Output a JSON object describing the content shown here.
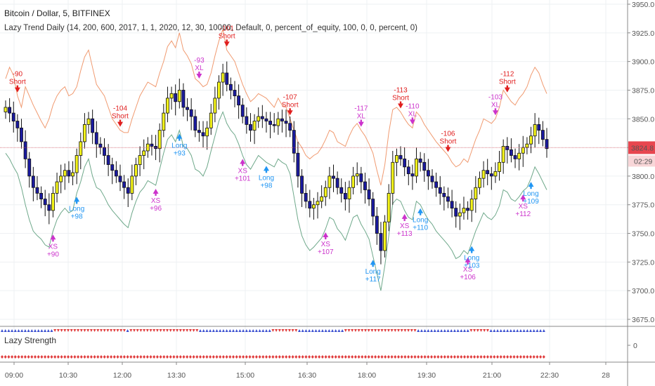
{
  "header": {
    "title": "Bitcoin / Dollar, 5, BITFINEX",
    "indicator": "Lazy Trend Daily (14, 200, 600, 2017, 1, 1, 2020, 12, 30, 10000, Default, 0, percent_of_equity, 100, 0, 0, percent, 0)"
  },
  "subpanel": {
    "title": "Lazy Strength",
    "zero_label": "0"
  },
  "price_scale": {
    "labels": [
      "3950.0",
      "3925.0",
      "3900.0",
      "3875.0",
      "3850.0",
      "3825.0",
      "3800.0",
      "3775.0",
      "3750.0",
      "3725.0",
      "3700.0",
      "3675.0"
    ],
    "current_price": "3824.8",
    "countdown": "02:29"
  },
  "colors": {
    "bull_candle": "#f5f51a",
    "bear_candle": "#1a1aa0",
    "red_candle": "#e8464f",
    "upper_band": "#f09a70",
    "lower_band": "#6ea88a",
    "long_signal": "#2196f3",
    "short_signal": "#e01e1e",
    "exit_signal": "#cc33cc",
    "price_line": "#e8464f"
  },
  "chart_data": {
    "type": "candlestick",
    "title": "Bitcoin / Dollar, 5, BITFINEX",
    "x_tick_labels": [
      "09:00",
      "10:30",
      "12:00",
      "13:30",
      "15:00",
      "16:30",
      "18:00",
      "19:30",
      "21:00",
      "22:30",
      "28"
    ],
    "y_range": [
      3670,
      3955
    ],
    "grid": true,
    "close": [
      3860,
      3855,
      3848,
      3842,
      3830,
      3815,
      3800,
      3790,
      3785,
      3780,
      3775,
      3770,
      3785,
      3795,
      3800,
      3805,
      3800,
      3803,
      3818,
      3830,
      3845,
      3850,
      3838,
      3828,
      3825,
      3818,
      3810,
      3805,
      3800,
      3795,
      3790,
      3785,
      3800,
      3810,
      3818,
      3822,
      3828,
      3826,
      3824,
      3840,
      3855,
      3868,
      3872,
      3865,
      3875,
      3860,
      3858,
      3852,
      3840,
      3838,
      3835,
      3842,
      3855,
      3868,
      3882,
      3890,
      3880,
      3875,
      3870,
      3862,
      3852,
      3845,
      3840,
      3848,
      3852,
      3850,
      3848,
      3845,
      3844,
      3850,
      3848,
      3846,
      3840,
      3820,
      3800,
      3785,
      3778,
      3772,
      3775,
      3778,
      3782,
      3790,
      3800,
      3798,
      3790,
      3785,
      3780,
      3790,
      3800,
      3802,
      3795,
      3788,
      3780,
      3765,
      3750,
      3735,
      3760,
      3785,
      3812,
      3818,
      3815,
      3808,
      3802,
      3800,
      3815,
      3812,
      3805,
      3800,
      3795,
      3790,
      3785,
      3782,
      3778,
      3772,
      3765,
      3768,
      3772,
      3770,
      3780,
      3790,
      3798,
      3805,
      3802,
      3800,
      3804,
      3812,
      3826,
      3823,
      3818,
      3815,
      3820,
      3825,
      3828,
      3835,
      3845,
      3840,
      3832,
      3824
    ],
    "upper_band": [
      3885,
      3895,
      3888,
      3870,
      3860,
      3878,
      3870,
      3862,
      3855,
      3848,
      3842,
      3850,
      3862,
      3870,
      3875,
      3878,
      3870,
      3872,
      3878,
      3892,
      3904,
      3910,
      3895,
      3880,
      3875,
      3870,
      3860,
      3850,
      3845,
      3840,
      3838,
      3838,
      3850,
      3860,
      3870,
      3876,
      3882,
      3880,
      3878,
      3890,
      3900,
      3913,
      3918,
      3912,
      3925,
      3910,
      3905,
      3898,
      3885,
      3882,
      3878,
      3880,
      3890,
      3905,
      3918,
      3928,
      3910,
      3905,
      3900,
      3890,
      3880,
      3872,
      3865,
      3868,
      3872,
      3870,
      3868,
      3864,
      3860,
      3868,
      3862,
      3860,
      3850,
      3840,
      3830,
      3825,
      3818,
      3815,
      3818,
      3820,
      3825,
      3832,
      3840,
      3838,
      3830,
      3828,
      3826,
      3835,
      3842,
      3846,
      3840,
      3835,
      3828,
      3820,
      3805,
      3792,
      3810,
      3838,
      3858,
      3860,
      3856,
      3850,
      3845,
      3842,
      3856,
      3852,
      3845,
      3840,
      3835,
      3830,
      3826,
      3822,
      3818,
      3812,
      3808,
      3810,
      3815,
      3812,
      3822,
      3832,
      3840,
      3850,
      3848,
      3846,
      3850,
      3860,
      3875,
      3870,
      3865,
      3862,
      3868,
      3872,
      3878,
      3888,
      3895,
      3890,
      3880,
      3872
    ],
    "lower_band": [
      3820,
      3815,
      3808,
      3802,
      3790,
      3775,
      3762,
      3752,
      3748,
      3745,
      3740,
      3738,
      3752,
      3762,
      3768,
      3772,
      3768,
      3770,
      3785,
      3795,
      3808,
      3815,
      3800,
      3790,
      3788,
      3782,
      3775,
      3770,
      3766,
      3762,
      3758,
      3755,
      3768,
      3778,
      3786,
      3790,
      3796,
      3794,
      3792,
      3806,
      3820,
      3832,
      3836,
      3830,
      3840,
      3826,
      3824,
      3818,
      3806,
      3804,
      3800,
      3808,
      3822,
      3835,
      3848,
      3856,
      3846,
      3840,
      3836,
      3828,
      3818,
      3810,
      3806,
      3812,
      3818,
      3815,
      3812,
      3810,
      3808,
      3815,
      3812,
      3810,
      3802,
      3782,
      3762,
      3748,
      3740,
      3735,
      3738,
      3742,
      3746,
      3754,
      3764,
      3762,
      3754,
      3750,
      3744,
      3754,
      3764,
      3766,
      3758,
      3752,
      3745,
      3730,
      3715,
      3700,
      3722,
      3748,
      3776,
      3780,
      3778,
      3770,
      3764,
      3762,
      3778,
      3775,
      3768,
      3762,
      3758,
      3752,
      3748,
      3744,
      3740,
      3735,
      3728,
      3730,
      3735,
      3732,
      3742,
      3752,
      3760,
      3768,
      3764,
      3762,
      3766,
      3774,
      3788,
      3786,
      3780,
      3778,
      3782,
      3787,
      3790,
      3798,
      3808,
      3802,
      3795,
      3788
    ],
    "signals": [
      {
        "label": "Short",
        "value": "-90",
        "type": "short"
      },
      {
        "label": "XS",
        "value": "+90",
        "type": "exit_short"
      },
      {
        "label": "Long",
        "value": "+98",
        "type": "long"
      },
      {
        "label": "Short",
        "value": "-104",
        "type": "short"
      },
      {
        "label": "XS",
        "value": "+96",
        "type": "exit_short"
      },
      {
        "label": "Long",
        "value": "+93",
        "type": "long"
      },
      {
        "label": "XL",
        "value": "-93",
        "type": "exit_long"
      },
      {
        "label": "Short",
        "value": "-101",
        "type": "short"
      },
      {
        "label": "XS",
        "value": "+101",
        "type": "exit_short"
      },
      {
        "label": "Long",
        "value": "+98",
        "type": "long"
      },
      {
        "label": "Short",
        "value": "-107",
        "type": "short"
      },
      {
        "label": "XS",
        "value": "+107",
        "type": "exit_short"
      },
      {
        "label": "XL",
        "value": "-117",
        "type": "exit_long"
      },
      {
        "label": "Long",
        "value": "+117",
        "type": "long"
      },
      {
        "label": "Short",
        "value": "-113",
        "type": "short"
      },
      {
        "label": "XS",
        "value": "+113",
        "type": "exit_short"
      },
      {
        "label": "XL",
        "value": "-110",
        "type": "exit_long"
      },
      {
        "label": "Long",
        "value": "+110",
        "type": "long"
      },
      {
        "label": "Short",
        "value": "-106",
        "type": "short"
      },
      {
        "label": "XS",
        "value": "+106",
        "type": "exit_short"
      },
      {
        "label": "Long",
        "value": "+103",
        "type": "long"
      },
      {
        "label": "XL",
        "value": "-103",
        "type": "exit_long"
      },
      {
        "label": "Short",
        "value": "-112",
        "type": "short"
      },
      {
        "label": "XS",
        "value": "+112",
        "type": "exit_short"
      },
      {
        "label": "Long",
        "value": "+109",
        "type": "long"
      }
    ]
  }
}
